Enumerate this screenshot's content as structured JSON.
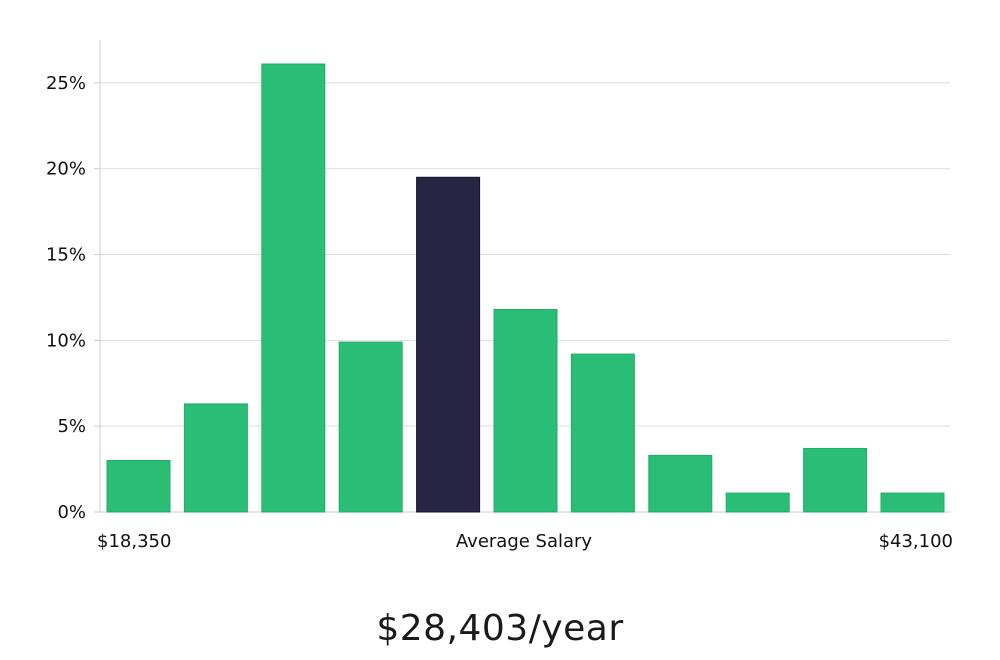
{
  "chart_data": {
    "type": "bar",
    "title": "",
    "xlabel": "Average Salary",
    "ylabel": "",
    "x_range_labels": {
      "min": "$18,350",
      "max": "$43,100"
    },
    "values": [
      3.0,
      6.3,
      26.1,
      9.9,
      19.5,
      11.8,
      9.2,
      3.3,
      1.1,
      3.7,
      1.1
    ],
    "highlight_index": 4,
    "ylim": [
      0,
      27.5
    ],
    "yticks": [
      {
        "value": 0,
        "label": "0%"
      },
      {
        "value": 5,
        "label": "5%"
      },
      {
        "value": 10,
        "label": "10%"
      },
      {
        "value": 15,
        "label": "15%"
      },
      {
        "value": 20,
        "label": "20%"
      },
      {
        "value": 25,
        "label": "25%"
      }
    ],
    "grid": true,
    "colors": {
      "bar": "#2abd76",
      "highlight": "#272444",
      "grid": "#dddddd",
      "axis": "#cccccc"
    }
  },
  "summary": {
    "average_salary": "$28,403/year"
  }
}
